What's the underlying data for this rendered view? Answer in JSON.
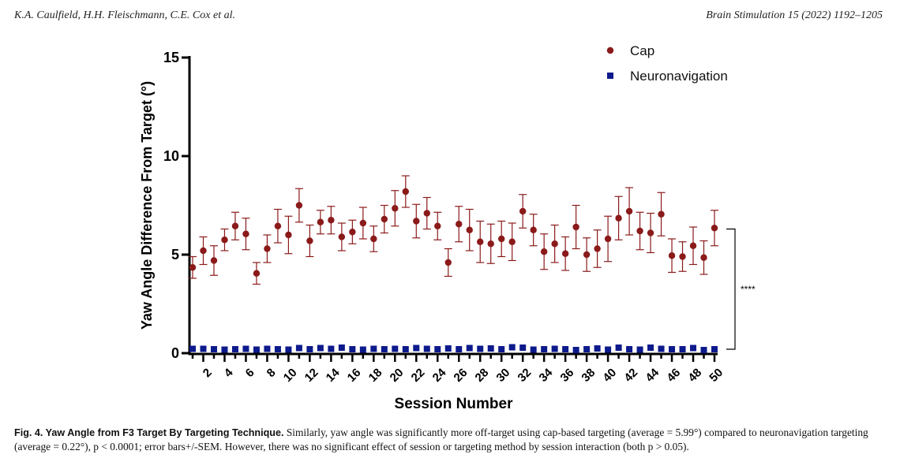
{
  "header": {
    "authors": "K.A. Caulfield, H.H. Fleischmann, C.E. Cox et al.",
    "journal": "Brain Stimulation 15 (2022) 1192–1205"
  },
  "chart_data": {
    "type": "scatter",
    "xlabel": "Session Number",
    "ylabel": "Yaw Angle Difference From Target (°)",
    "ylim": [
      0,
      15
    ],
    "yticks": [
      0,
      5,
      10,
      15
    ],
    "xlim": [
      1,
      50
    ],
    "xticks": [
      2,
      4,
      6,
      8,
      10,
      12,
      14,
      16,
      18,
      20,
      22,
      24,
      26,
      28,
      30,
      32,
      34,
      36,
      38,
      40,
      42,
      44,
      46,
      48,
      50
    ],
    "legend_position": "top-right",
    "significance_label": "****",
    "series": [
      {
        "name": "Cap",
        "color": "#8b1a1a",
        "marker": "circle",
        "x": [
          1,
          2,
          3,
          4,
          5,
          6,
          7,
          8,
          9,
          10,
          11,
          12,
          13,
          14,
          15,
          16,
          17,
          18,
          19,
          20,
          21,
          22,
          23,
          24,
          25,
          26,
          27,
          28,
          29,
          30,
          31,
          32,
          33,
          34,
          35,
          36,
          37,
          38,
          39,
          40,
          41,
          42,
          43,
          44,
          45,
          46,
          47,
          48,
          49,
          50
        ],
        "values": [
          4.35,
          5.2,
          4.7,
          5.75,
          6.45,
          6.05,
          4.05,
          5.3,
          6.45,
          6.0,
          7.5,
          5.7,
          6.65,
          6.75,
          5.9,
          6.15,
          6.6,
          5.8,
          6.8,
          7.35,
          8.2,
          6.7,
          7.1,
          6.45,
          4.6,
          6.55,
          6.25,
          5.65,
          5.55,
          5.8,
          5.65,
          7.2,
          6.25,
          5.15,
          5.55,
          5.05,
          6.4,
          5.0,
          5.3,
          5.8,
          6.85,
          7.2,
          6.2,
          6.1,
          7.05,
          4.95,
          4.9,
          5.45,
          4.85,
          6.35
        ],
        "error": [
          0.55,
          0.7,
          0.75,
          0.55,
          0.7,
          0.8,
          0.55,
          0.7,
          0.85,
          0.95,
          0.85,
          0.8,
          0.6,
          0.7,
          0.7,
          0.6,
          0.8,
          0.65,
          0.7,
          0.9,
          0.8,
          0.85,
          0.8,
          0.7,
          0.7,
          0.9,
          1.05,
          1.05,
          1.0,
          0.9,
          0.95,
          0.85,
          0.8,
          0.9,
          0.95,
          0.85,
          1.1,
          0.85,
          0.95,
          1.15,
          1.1,
          1.2,
          0.95,
          1.0,
          1.1,
          0.85,
          0.75,
          0.95,
          0.85,
          0.9
        ]
      },
      {
        "name": "Neuronavigation",
        "color": "#0d1a8c",
        "marker": "square",
        "x": [
          1,
          2,
          3,
          4,
          5,
          6,
          7,
          8,
          9,
          10,
          11,
          12,
          13,
          14,
          15,
          16,
          17,
          18,
          19,
          20,
          21,
          22,
          23,
          24,
          25,
          26,
          27,
          28,
          29,
          30,
          31,
          32,
          33,
          34,
          35,
          36,
          37,
          38,
          39,
          40,
          41,
          42,
          43,
          44,
          45,
          46,
          47,
          48,
          49,
          50
        ],
        "values": [
          0.22,
          0.22,
          0.2,
          0.18,
          0.2,
          0.22,
          0.18,
          0.22,
          0.2,
          0.18,
          0.26,
          0.2,
          0.26,
          0.22,
          0.28,
          0.2,
          0.18,
          0.22,
          0.2,
          0.22,
          0.2,
          0.26,
          0.22,
          0.2,
          0.24,
          0.2,
          0.26,
          0.22,
          0.24,
          0.2,
          0.3,
          0.28,
          0.18,
          0.2,
          0.22,
          0.2,
          0.16,
          0.2,
          0.24,
          0.18,
          0.28,
          0.2,
          0.18,
          0.28,
          0.22,
          0.2,
          0.2,
          0.26,
          0.16,
          0.2
        ]
      }
    ]
  },
  "caption": {
    "label": "Fig. 4. Yaw Angle from F3 Target By Targeting Technique.",
    "text": " Similarly, yaw angle was significantly more off-target using cap-based targeting (average = 5.99°) compared to neuronavigation targeting (average = 0.22°), p < 0.0001; error bars+/-SEM. However, there was no significant effect of session or targeting method by session interaction (both p > 0.05)."
  }
}
